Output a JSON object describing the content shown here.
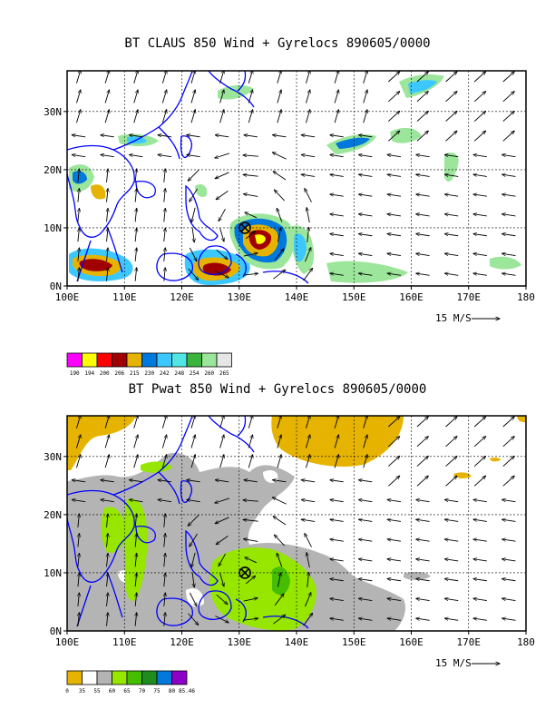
{
  "panels": [
    {
      "title": "BT CLAUS 850 Wind + Gyrelocs 890605/0000",
      "vector_scale_label": "15 M/S",
      "lat_labels": [
        "30N",
        "20N",
        "10N",
        "0N"
      ],
      "lon_labels": [
        "100E",
        "110E",
        "120E",
        "130E",
        "140E",
        "150E",
        "160E",
        "170E",
        "180"
      ],
      "colorbar": {
        "colors": [
          "#ff00ff",
          "#ffff00",
          "#ff0000",
          "#a00000",
          "#e6b400",
          "#0078dc",
          "#3cc8ff",
          "#50e6e6",
          "#3cb43c",
          "#9be69b",
          "#e6e6e6"
        ],
        "labels": [
          "190",
          "194",
          "200",
          "206",
          "215",
          "230",
          "242",
          "248",
          "254",
          "260",
          "265"
        ]
      }
    },
    {
      "title": "BT Pwat 850 Wind + Gyrelocs 890605/0000",
      "vector_scale_label": "15 M/S",
      "lat_labels": [
        "30N",
        "20N",
        "10N",
        "0N"
      ],
      "lon_labels": [
        "100E",
        "110E",
        "120E",
        "130E",
        "140E",
        "150E",
        "160E",
        "170E",
        "180"
      ],
      "colorbar": {
        "colors": [
          "#e6b400",
          "#ffffff",
          "#b4b4b4",
          "#96e600",
          "#46be00",
          "#1e8c1e",
          "#0078dc",
          "#8c00c8"
        ],
        "labels": [
          "0",
          "35",
          "55",
          "60",
          "65",
          "70",
          "75",
          "80",
          "85.46"
        ]
      }
    }
  ],
  "gyre_location": {
    "lon": 131,
    "lat": 10
  },
  "map_extent": {
    "lon": [
      100,
      180
    ],
    "lat": [
      0,
      37
    ]
  },
  "colors": {
    "coastline": "#0000ff",
    "frame": "#000000",
    "grid": "#000000"
  }
}
